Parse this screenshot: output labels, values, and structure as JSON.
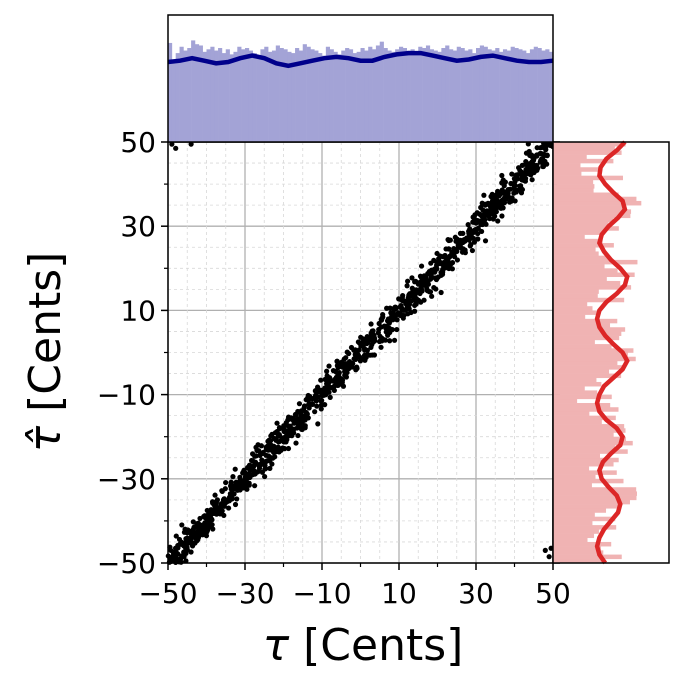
{
  "chart_data": {
    "type": "scatter",
    "main": {
      "xlabel": {
        "symbol": "τ",
        "text": " [Cents]"
      },
      "ylabel": {
        "symbol": "τ̂",
        "text": " [Cents]"
      },
      "xlim": [
        -50,
        50
      ],
      "ylim": [
        -50,
        50
      ],
      "x_ticks": [
        -50,
        -30,
        -10,
        10,
        30,
        50
      ],
      "x_tick_labels": [
        "−50",
        "−30",
        "−10",
        "10",
        "30",
        "50"
      ],
      "y_ticks": [
        -50,
        -30,
        -10,
        10,
        30,
        50
      ],
      "y_tick_labels": [
        "−50",
        "−30",
        "−10",
        "10",
        "30",
        "50"
      ],
      "minor_ticks": [
        -40,
        -20,
        0,
        20,
        40
      ],
      "grid": true,
      "points_description_free": true,
      "trend": {
        "slope": 1.0,
        "intercept": 0.0,
        "spread": 3.5
      },
      "wrap_points": [
        [
          -49,
          49.5
        ],
        [
          -48,
          48.5
        ],
        [
          -44,
          49.5
        ],
        [
          48,
          -47
        ],
        [
          49,
          -48.5
        ],
        [
          49.5,
          -46.5
        ]
      ],
      "point_color": "#000000"
    },
    "top_marginal": {
      "type": "histogram",
      "axis": "x",
      "bar_color": "#a3a3d6",
      "kde_color": "#00008b",
      "bins_relative_heights": [
        0.78,
        0.62,
        0.7,
        0.75,
        0.72,
        0.74,
        0.8,
        0.77,
        0.76,
        0.71,
        0.73,
        0.75,
        0.72,
        0.74,
        0.7,
        0.73,
        0.69,
        0.71,
        0.75,
        0.73,
        0.74,
        0.72,
        0.7,
        0.68,
        0.73,
        0.75,
        0.71,
        0.72,
        0.76,
        0.74,
        0.73,
        0.71,
        0.7,
        0.74,
        0.72,
        0.77,
        0.75,
        0.73,
        0.72,
        0.7,
        0.68,
        0.75,
        0.73,
        0.71,
        0.69,
        0.72,
        0.74,
        0.73,
        0.7,
        0.71,
        0.74,
        0.72,
        0.75,
        0.73,
        0.76,
        0.79,
        0.74,
        0.72,
        0.71,
        0.73,
        0.75,
        0.74,
        0.72,
        0.73,
        0.71,
        0.75,
        0.74,
        0.76,
        0.73,
        0.72,
        0.71,
        0.74,
        0.76,
        0.73,
        0.72,
        0.75,
        0.74,
        0.72,
        0.73,
        0.7,
        0.74,
        0.76,
        0.75,
        0.73,
        0.72,
        0.74,
        0.71,
        0.73,
        0.72,
        0.75,
        0.74,
        0.73,
        0.72,
        0.7,
        0.73,
        0.75,
        0.74,
        0.72,
        0.73,
        0.71
      ],
      "kde_relative": [
        0.63,
        0.64,
        0.66,
        0.64,
        0.62,
        0.63,
        0.66,
        0.68,
        0.66,
        0.62,
        0.6,
        0.62,
        0.64,
        0.66,
        0.67,
        0.66,
        0.64,
        0.64,
        0.67,
        0.69,
        0.7,
        0.7,
        0.68,
        0.66,
        0.64,
        0.65,
        0.67,
        0.68,
        0.66,
        0.64,
        0.63,
        0.63,
        0.64
      ]
    },
    "right_marginal": {
      "type": "histogram",
      "axis": "y",
      "bar_color": "#f0b3b3",
      "kde_color": "#dc2626",
      "kde_relative": [
        0.45,
        0.4,
        0.38,
        0.4,
        0.44,
        0.5,
        0.56,
        0.58,
        0.55,
        0.48,
        0.42,
        0.4,
        0.43,
        0.5,
        0.58,
        0.6,
        0.55,
        0.46,
        0.4,
        0.38,
        0.4,
        0.44,
        0.52,
        0.6,
        0.64,
        0.6,
        0.52,
        0.45,
        0.4,
        0.38,
        0.4,
        0.46,
        0.55,
        0.62,
        0.64,
        0.58,
        0.5,
        0.44,
        0.4,
        0.42,
        0.48,
        0.56,
        0.62,
        0.6,
        0.52,
        0.45,
        0.4,
        0.41,
        0.46,
        0.55,
        0.62
      ]
    }
  }
}
